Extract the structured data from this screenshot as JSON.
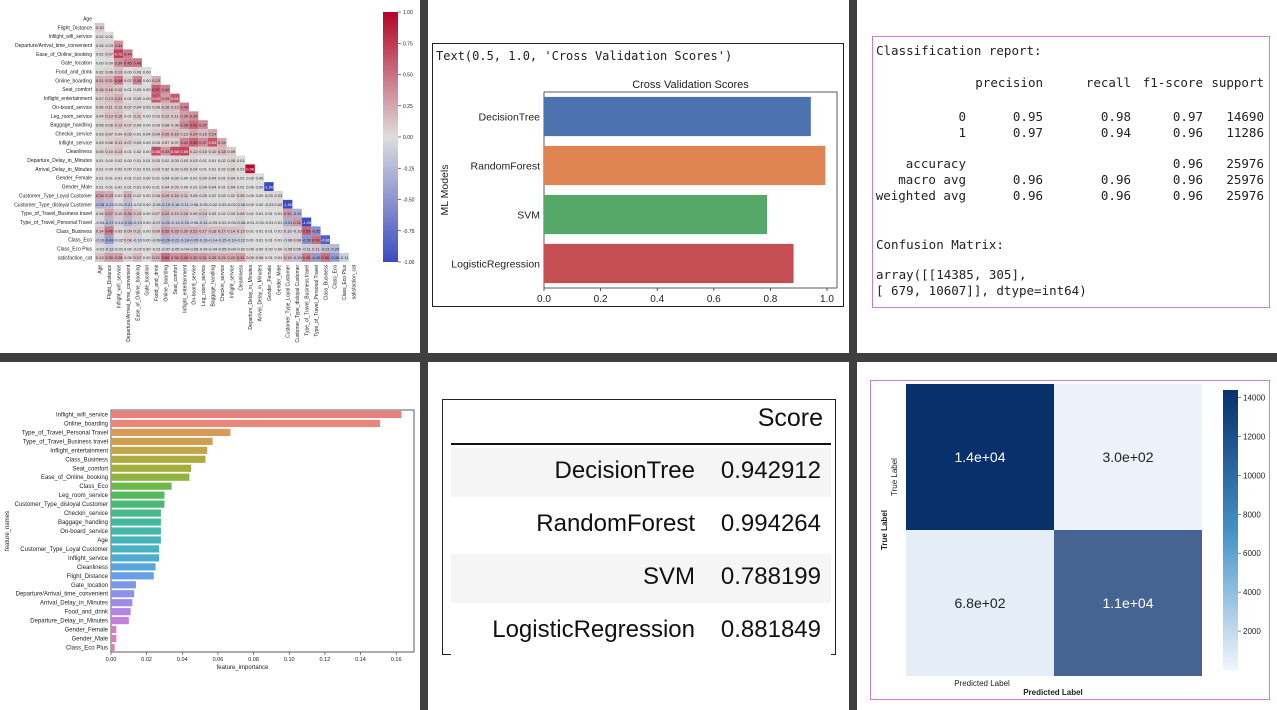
{
  "panels": {
    "heatmap": {
      "chart_data": {
        "type": "heatmap",
        "labels": [
          "Age",
          "Flight_Distance",
          "Inflight_wifi_service",
          "Departure/Arrival_time_convenient",
          "Ease_of_Online_booking",
          "Gate_location",
          "Food_and_drink",
          "Online_boarding",
          "Seat_comfort",
          "Inflight_entertainment",
          "On-board_service",
          "Leg_room_service",
          "Baggage_handling",
          "Checkin_service",
          "Inflight_service",
          "Cleanliness",
          "Departure_Delay_in_Minutes",
          "Arrival_Delay_in_Minutes",
          "Gender_Female",
          "Gender_Male",
          "Customer_Type_Loyal Customer",
          "Customer_Type_disloyal Customer",
          "Type_of_Travel_Business travel",
          "Type_of_Travel_Personal Travel",
          "Class_Business",
          "Class_Eco",
          "Class_Eco Plus",
          "satisfaction_cat"
        ],
        "colorbar_ticks": [
          "1.00",
          "0.75",
          "0.50",
          "0.25",
          "0.00",
          "-0.25",
          "-0.50",
          "-0.75",
          "-1.00"
        ],
        "vmin": -1,
        "vmax": 1,
        "values": [
          [],
          [
            0.1
          ],
          [
            0.02,
            0.01
          ],
          [
            0.04,
            0.03,
            0.34
          ],
          [
            0.02,
            0.07,
            0.72,
            0.44
          ],
          [
            0.0,
            0.0,
            0.34,
            0.45,
            0.46
          ],
          [
            0.02,
            0.06,
            0.13,
            0.0,
            0.03,
            0.0
          ],
          [
            0.21,
            0.21,
            0.46,
            0.07,
            0.4,
            0.0,
            0.23
          ],
          [
            0.16,
            0.16,
            0.12,
            0.01,
            0.03,
            0.0,
            0.57,
            0.42
          ],
          [
            0.07,
            0.13,
            0.21,
            0.01,
            0.05,
            0.0,
            0.62,
            0.29,
            0.61
          ],
          [
            0.06,
            0.11,
            0.12,
            0.07,
            0.04,
            0.03,
            0.06,
            0.16,
            0.13,
            0.42
          ],
          [
            0.04,
            0.13,
            0.16,
            0.01,
            0.11,
            0.0,
            0.03,
            0.12,
            0.11,
            0.3,
            0.36
          ],
          [
            0.05,
            0.06,
            0.12,
            0.07,
            0.04,
            0.0,
            0.03,
            0.08,
            0.08,
            0.38,
            0.52,
            0.37
          ],
          [
            0.03,
            0.07,
            0.04,
            0.09,
            0.01,
            0.04,
            0.09,
            0.2,
            0.19,
            0.12,
            0.24,
            0.15,
            0.24
          ],
          [
            0.03,
            0.06,
            0.11,
            0.07,
            0.04,
            0.0,
            0.03,
            0.07,
            0.07,
            0.41,
            0.55,
            0.37,
            0.63,
            0.24
          ],
          [
            0.05,
            0.1,
            0.13,
            0.01,
            0.02,
            0.0,
            0.66,
            0.33,
            0.68,
            0.69,
            0.12,
            0.1,
            0.1,
            0.18,
            0.09
          ],
          [
            0.01,
            0.0,
            0.02,
            0.0,
            0.01,
            0.01,
            0.03,
            0.02,
            0.03,
            0.03,
            0.03,
            0.01,
            0.01,
            0.02,
            0.05,
            0.01
          ],
          [
            0.01,
            0.0,
            0.02,
            0.0,
            0.01,
            0.01,
            0.03,
            0.02,
            0.03,
            0.03,
            0.04,
            0.01,
            0.01,
            0.02,
            0.06,
            0.02,
            0.96
          ],
          [
            0.01,
            0.01,
            0.01,
            0.01,
            0.01,
            0.0,
            0.01,
            0.04,
            0.03,
            0.0,
            0.01,
            0.04,
            0.04,
            0.01,
            0.04,
            0.01,
            0.0,
            0.0
          ],
          [
            0.01,
            0.01,
            0.01,
            0.01,
            0.01,
            0.0,
            0.01,
            0.04,
            0.03,
            0.0,
            0.01,
            0.04,
            0.04,
            0.01,
            0.04,
            0.01,
            0.0,
            0.0,
            -1.0
          ],
          [
            0.28,
            0.23,
            0.01,
            0.21,
            0.02,
            0.0,
            0.06,
            0.19,
            0.16,
            0.11,
            0.06,
            0.05,
            0.02,
            0.03,
            0.02,
            0.08,
            0.0,
            0.0,
            0.03,
            0.03
          ],
          [
            -0.28,
            -0.23,
            -0.01,
            -0.21,
            -0.02,
            0.0,
            -0.06,
            -0.19,
            -0.16,
            -0.11,
            -0.06,
            -0.05,
            -0.02,
            -0.03,
            -0.02,
            -0.08,
            0.0,
            0.0,
            -0.03,
            0.03,
            -1.0
          ],
          [
            0.04,
            0.27,
            0.1,
            0.26,
            0.13,
            0.0,
            0.07,
            0.22,
            0.13,
            0.15,
            0.06,
            0.14,
            0.03,
            0.02,
            0.03,
            0.08,
            0.01,
            0.01,
            0.01,
            0.01,
            0.31,
            -0.31
          ],
          [
            -0.04,
            -0.27,
            -0.1,
            -0.26,
            -0.13,
            0.0,
            -0.07,
            -0.22,
            -0.13,
            -0.15,
            -0.06,
            -0.14,
            -0.03,
            -0.02,
            -0.03,
            -0.08,
            -0.01,
            -0.01,
            -0.01,
            0.01,
            -0.31,
            0.31,
            -1.0
          ],
          [
            0.14,
            0.45,
            0.03,
            0.09,
            0.11,
            0.0,
            0.09,
            0.32,
            0.23,
            0.2,
            0.22,
            0.17,
            0.16,
            0.17,
            0.14,
            0.13,
            0.01,
            0.01,
            0.01,
            0.01,
            0.1,
            -0.1,
            0.55,
            -0.55
          ],
          [
            -0.13,
            -0.43,
            -0.02,
            0.08,
            -0.1,
            0.0,
            -0.09,
            -0.29,
            -0.21,
            -0.18,
            -0.2,
            -0.16,
            -0.14,
            -0.15,
            -0.13,
            -0.12,
            0.01,
            0.01,
            0.01,
            0.01,
            -0.08,
            0.08,
            -0.5,
            0.5,
            -0.86
          ],
          [
            -0.01,
            -0.12,
            -0.01,
            0.0,
            -0.02,
            0.0,
            -0.01,
            -0.07,
            -0.05,
            -0.04,
            -0.05,
            -0.04,
            -0.04,
            -0.05,
            -0.04,
            -0.02,
            0.0,
            0.0,
            0.0,
            0.0,
            -0.05,
            0.05,
            -0.11,
            0.11,
            -0.21,
            -0.25
          ],
          [
            0.13,
            0.3,
            0.28,
            0.05,
            0.17,
            0.0,
            0.21,
            0.5,
            0.35,
            0.4,
            0.32,
            0.31,
            0.25,
            0.24,
            0.24,
            0.31,
            0.05,
            0.06,
            0.01,
            0.01,
            0.19,
            -0.19,
            0.45,
            -0.45,
            0.5,
            -0.45,
            -0.11
          ]
        ]
      }
    },
    "cv_bar": {
      "text_line": "Text(0.5, 1.0, 'Cross Validation Scores')",
      "chart_data": {
        "type": "bar",
        "orientation": "horizontal",
        "title": "Cross Validation Scores",
        "ylabel": "ML Models",
        "xlabel": "",
        "categories": [
          "DecisionTree",
          "RandomForest",
          "SVM",
          "LogisticRegression"
        ],
        "values": [
          0.942912,
          0.994264,
          0.788199,
          0.881849
        ],
        "colors": [
          "#4c72b0",
          "#dd8452",
          "#55a868",
          "#c44e52"
        ],
        "xlim": [
          0,
          1.0
        ],
        "xticks": [
          "0.0",
          "0.2",
          "0.4",
          "0.6",
          "0.8",
          "1.0"
        ]
      }
    },
    "report": {
      "title": "Classification report:",
      "header": [
        "precision",
        "recall",
        "f1-score",
        "support"
      ],
      "rows": [
        {
          "label": "0",
          "precision": "0.95",
          "recall": "0.98",
          "f1": "0.97",
          "support": "14690"
        },
        {
          "label": "1",
          "precision": "0.97",
          "recall": "0.94",
          "f1": "0.96",
          "support": "11286"
        },
        {
          "label": "accuracy",
          "precision": "",
          "recall": "",
          "f1": "0.96",
          "support": "25976"
        },
        {
          "label": "macro avg",
          "precision": "0.96",
          "recall": "0.96",
          "f1": "0.96",
          "support": "25976"
        },
        {
          "label": "weighted avg",
          "precision": "0.96",
          "recall": "0.96",
          "f1": "0.96",
          "support": "25976"
        }
      ],
      "cm_title": "Confusion Matrix:",
      "cm_line1": "array([[14385,   305],",
      "cm_line2": "       [  679, 10607]], dtype=int64)"
    },
    "importance": {
      "chart_data": {
        "type": "bar",
        "orientation": "horizontal",
        "ylabel": "feature_names",
        "xlabel": "feature_importance",
        "categories": [
          "Inflight_wifi_service",
          "Online_boarding",
          "Type_of_Travel_Personal Travel",
          "Type_of_Travel_Business travel",
          "Inflight_entertainment",
          "Class_Business",
          "Seat_comfort",
          "Ease_of_Online_booking",
          "Class_Eco",
          "Leg_room_service",
          "Customer_Type_disloyal Customer",
          "Checkin_service",
          "Baggage_handling",
          "On-board_service",
          "Age",
          "Customer_Type_Loyal Customer",
          "Inflight_service",
          "Cleanliness",
          "Flight_Distance",
          "Gate_location",
          "Departure/Arrival_time_convenient",
          "Arrival_Delay_in_Minutes",
          "Food_and_drink",
          "Departure_Delay_in_Minutes",
          "Gender_Female",
          "Gender_Male",
          "Class_Eco Plus"
        ],
        "values": [
          0.163,
          0.151,
          0.067,
          0.057,
          0.054,
          0.053,
          0.045,
          0.044,
          0.034,
          0.03,
          0.03,
          0.028,
          0.028,
          0.028,
          0.028,
          0.027,
          0.027,
          0.025,
          0.024,
          0.014,
          0.013,
          0.012,
          0.011,
          0.01,
          0.003,
          0.003,
          0.002
        ],
        "xlim": [
          0,
          0.17
        ],
        "xticks": [
          "0.00",
          "0.02",
          "0.04",
          "0.06",
          "0.08",
          "0.10",
          "0.12",
          "0.14",
          "0.16"
        ]
      }
    },
    "score_table": {
      "header": "Score",
      "rows": [
        {
          "model": "DecisionTree",
          "score": "0.942912"
        },
        {
          "model": "RandomForest",
          "score": "0.994264"
        },
        {
          "model": "SVM",
          "score": "0.788199"
        },
        {
          "model": "LogisticRegression",
          "score": "0.881849"
        }
      ]
    },
    "confusion": {
      "chart_data": {
        "type": "heatmap",
        "cells": [
          [
            "1.4e+04",
            "3.0e+02"
          ],
          [
            "6.8e+02",
            "1.1e+04"
          ]
        ],
        "values": [
          [
            14385,
            305
          ],
          [
            679,
            10607
          ]
        ],
        "ylabel": "True Label",
        "ylabel_inner": "True Label",
        "xlabel": "Predicted Label",
        "xlabel_inner": "Predicted Label",
        "colorbar_ticks": [
          "14000",
          "12000",
          "10000",
          "8000",
          "6000",
          "4000",
          "2000"
        ],
        "vmin": 0,
        "vmax": 14385
      }
    }
  }
}
